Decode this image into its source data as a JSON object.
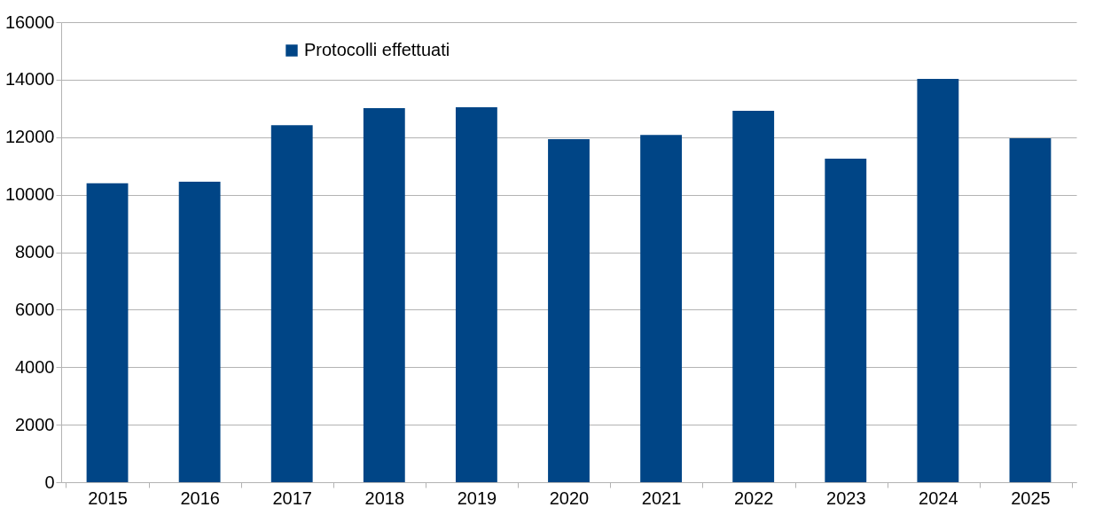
{
  "chart_data": {
    "type": "bar",
    "categories": [
      "2015",
      "2016",
      "2017",
      "2018",
      "2019",
      "2020",
      "2021",
      "2022",
      "2023",
      "2024",
      "2025"
    ],
    "series": [
      {
        "name": "Protocolli effettuati",
        "color": "#004586",
        "values": [
          10400,
          10450,
          12420,
          13010,
          13040,
          11930,
          12080,
          12920,
          11250,
          14030,
          11960
        ]
      }
    ],
    "ylim": [
      0,
      16000
    ],
    "yticks": [
      0,
      2000,
      4000,
      6000,
      8000,
      10000,
      12000,
      14000,
      16000
    ],
    "grid": "y",
    "legend": "top left"
  }
}
